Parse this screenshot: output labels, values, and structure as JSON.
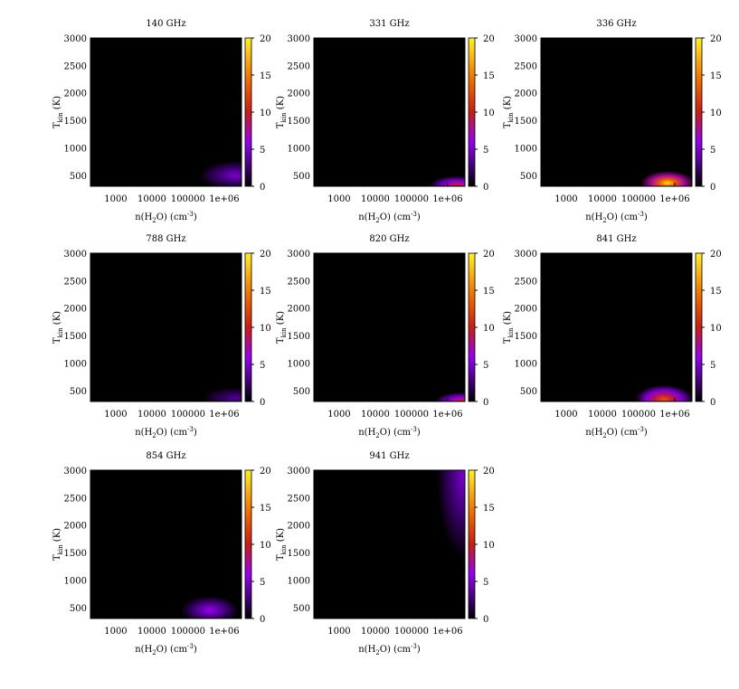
{
  "figure": {
    "x_tick_labels": [
      "1000",
      "10000",
      "100000",
      "1e+06"
    ],
    "y_tick_labels": [
      "500",
      "1000",
      "1500",
      "2000",
      "2500",
      "3000"
    ],
    "colorbar_tick_labels": [
      "0",
      "5",
      "10",
      "15",
      "20"
    ],
    "xlabel": "n(H2O) (cm-3)",
    "ylabel": "Tkin (K)"
  },
  "chart_data": [
    {
      "type": "heatmap",
      "title": "140 GHz",
      "xlabel": "n(H2O) (cm-3)",
      "ylabel": "Tkin (K)",
      "xscale": "log",
      "xlim": [
        200,
        3000000
      ],
      "ylim": [
        300,
        3000
      ],
      "clim": [
        0,
        20
      ],
      "colormap": "black-purple-red-yellow",
      "peak": {
        "log_n": 6.3,
        "T_kin": 500,
        "value": 5,
        "width": 1.0,
        "height": 260
      }
    },
    {
      "type": "heatmap",
      "title": "331 GHz",
      "xlabel": "n(H2O) (cm-3)",
      "ylabel": "Tkin (K)",
      "xscale": "log",
      "xlim": [
        200,
        3000000
      ],
      "ylim": [
        300,
        3000
      ],
      "clim": [
        0,
        20
      ],
      "colormap": "black-purple-red-yellow",
      "peak": {
        "log_n": 6.25,
        "T_kin": 320,
        "value": 10,
        "width": 0.75,
        "height": 170
      }
    },
    {
      "type": "heatmap",
      "title": "336 GHz",
      "xlabel": "n(H2O) (cm-3)",
      "ylabel": "Tkin (K)",
      "xscale": "log",
      "xlim": [
        200,
        3000000
      ],
      "ylim": [
        300,
        3000
      ],
      "clim": [
        0,
        20
      ],
      "colormap": "black-purple-red-yellow",
      "peak": {
        "log_n": 5.8,
        "T_kin": 360,
        "value": 19,
        "width": 0.75,
        "height": 220
      }
    },
    {
      "type": "heatmap",
      "title": "788 GHz",
      "xlabel": "n(H2O) (cm-3)",
      "ylabel": "Tkin (K)",
      "xscale": "log",
      "xlim": [
        200,
        3000000
      ],
      "ylim": [
        300,
        3000
      ],
      "clim": [
        0,
        20
      ],
      "colormap": "black-purple-red-yellow",
      "peak": {
        "log_n": 6.3,
        "T_kin": 360,
        "value": 3.5,
        "width": 0.9,
        "height": 200
      }
    },
    {
      "type": "heatmap",
      "title": "820 GHz",
      "xlabel": "n(H2O) (cm-3)",
      "ylabel": "Tkin (K)",
      "xscale": "log",
      "xlim": [
        200,
        3000000
      ],
      "ylim": [
        300,
        3000
      ],
      "clim": [
        0,
        20
      ],
      "colormap": "black-purple-red-yellow",
      "peak": {
        "log_n": 6.4,
        "T_kin": 310,
        "value": 10,
        "width": 0.75,
        "height": 160
      }
    },
    {
      "type": "heatmap",
      "title": "841 GHz",
      "xlabel": "n(H2O) (cm-3)",
      "ylabel": "Tkin (K)",
      "xscale": "log",
      "xlim": [
        200,
        3000000
      ],
      "ylim": [
        300,
        3000
      ],
      "clim": [
        0,
        20
      ],
      "colormap": "black-purple-red-yellow",
      "peak": {
        "log_n": 5.7,
        "T_kin": 340,
        "value": 13,
        "width": 0.8,
        "height": 260
      }
    },
    {
      "type": "heatmap",
      "title": "854 GHz",
      "xlabel": "n(H2O) (cm-3)",
      "ylabel": "Tkin (K)",
      "xscale": "log",
      "xlim": [
        200,
        3000000
      ],
      "ylim": [
        300,
        3000
      ],
      "clim": [
        0,
        20
      ],
      "colormap": "black-purple-red-yellow",
      "peak": {
        "log_n": 5.6,
        "T_kin": 450,
        "value": 6,
        "width": 0.8,
        "height": 260
      }
    },
    {
      "type": "heatmap",
      "title": "941 GHz",
      "xlabel": "n(H2O) (cm-3)",
      "ylabel": "Tkin (K)",
      "xscale": "log",
      "xlim": [
        200,
        3000000
      ],
      "ylim": [
        300,
        3000
      ],
      "clim": [
        0,
        20
      ],
      "colormap": "black-purple-red-yellow",
      "peak": {
        "log_n": 6.45,
        "T_kin": 2900,
        "value": 5,
        "width": 0.75,
        "height": 1500
      }
    }
  ]
}
